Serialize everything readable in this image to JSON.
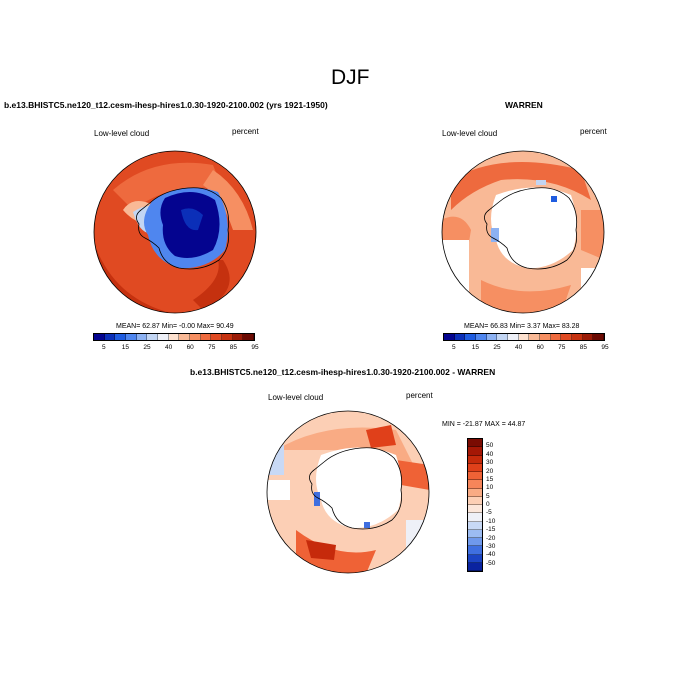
{
  "figure_title": "DJF",
  "panels": {
    "model": {
      "title": "b.e13.BHISTC5.ne120_t12.cesm-ihesp-hires1.0.30-1920-2100.002 (yrs 1921-1950)",
      "left_label": "Low-level cloud",
      "right_label": "percent",
      "stats": "MEAN=  62.87  Min=  -0.00  Max=  90.49"
    },
    "obs": {
      "title": "WARREN",
      "left_label": "Low-level cloud",
      "right_label": "percent",
      "stats": "MEAN=  66.83  Min=   3.37  Max=  83.28"
    },
    "diff": {
      "title": "b.e13.BHISTC5.ne120_t12.cesm-ihesp-hires1.0.30-1920-2100.002 - WARREN",
      "left_label": "Low-level cloud",
      "right_label": "percent",
      "stats": "MIN = -21.87 MAX =  44.87"
    }
  },
  "abs_colorbar": {
    "labels": [
      "5",
      "15",
      "25",
      "40",
      "60",
      "75",
      "85",
      "95"
    ],
    "colors": [
      "#04048f",
      "#0b2fb8",
      "#1f5ce0",
      "#4f86ef",
      "#8cb1f2",
      "#c2d5f3",
      "#eef0f7",
      "#fde1cf",
      "#f9b996",
      "#f68f62",
      "#ee6a3e",
      "#e04a22",
      "#c5310f",
      "#9b1b07",
      "#6b0a02"
    ]
  },
  "diff_colorbar": {
    "labels": [
      "50",
      "40",
      "30",
      "20",
      "15",
      "10",
      "5",
      "0",
      "-5",
      "-10",
      "-15",
      "-20",
      "-30",
      "-40",
      "-50"
    ],
    "colors": [
      "#7a0b02",
      "#a51705",
      "#c62a0b",
      "#e0401a",
      "#ef6236",
      "#f6855a",
      "#f9ab84",
      "#fccfb5",
      "#fbe6da",
      "#eef0f7",
      "#c8d9f5",
      "#9cbcf2",
      "#6f99ec",
      "#3f6fe0",
      "#1c44c4",
      "#0a23a0"
    ]
  }
}
